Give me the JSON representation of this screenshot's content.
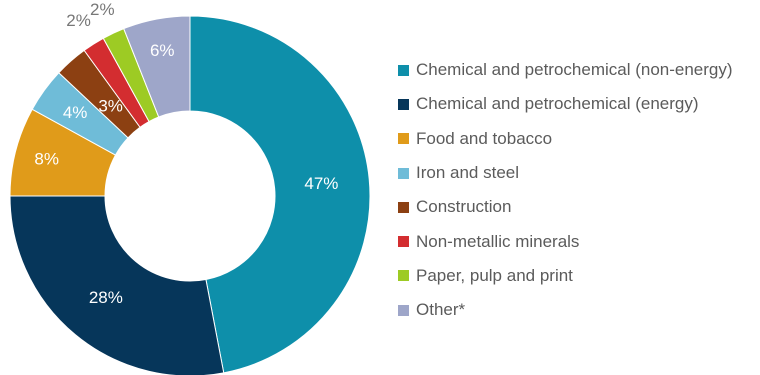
{
  "chart_data": {
    "type": "pie",
    "variant": "donut",
    "title": "",
    "legend_position": "right",
    "categories": [
      "Chemical and petrochemical (non-energy)",
      "Chemical and petrochemical (energy)",
      "Food and tobacco",
      "Iron and steel",
      "Construction",
      "Non-metallic minerals",
      "Paper, pulp and print",
      "Other*"
    ],
    "values": [
      47,
      28,
      8,
      4,
      3,
      2,
      2,
      6
    ],
    "value_labels": [
      "47%",
      "28%",
      "8%",
      "4%",
      "3%",
      "2%",
      "2%",
      "6%"
    ],
    "colors": [
      "#0e8faa",
      "#06365a",
      "#e09b1a",
      "#6fbcd8",
      "#8c4012",
      "#d32d30",
      "#9dcb24",
      "#9ea6c9"
    ],
    "label_colors": [
      "#ffffff",
      "#ffffff",
      "#ffffff",
      "#ffffff",
      "#ffffff",
      "#777777",
      "#777777",
      "#ffffff"
    ]
  }
}
